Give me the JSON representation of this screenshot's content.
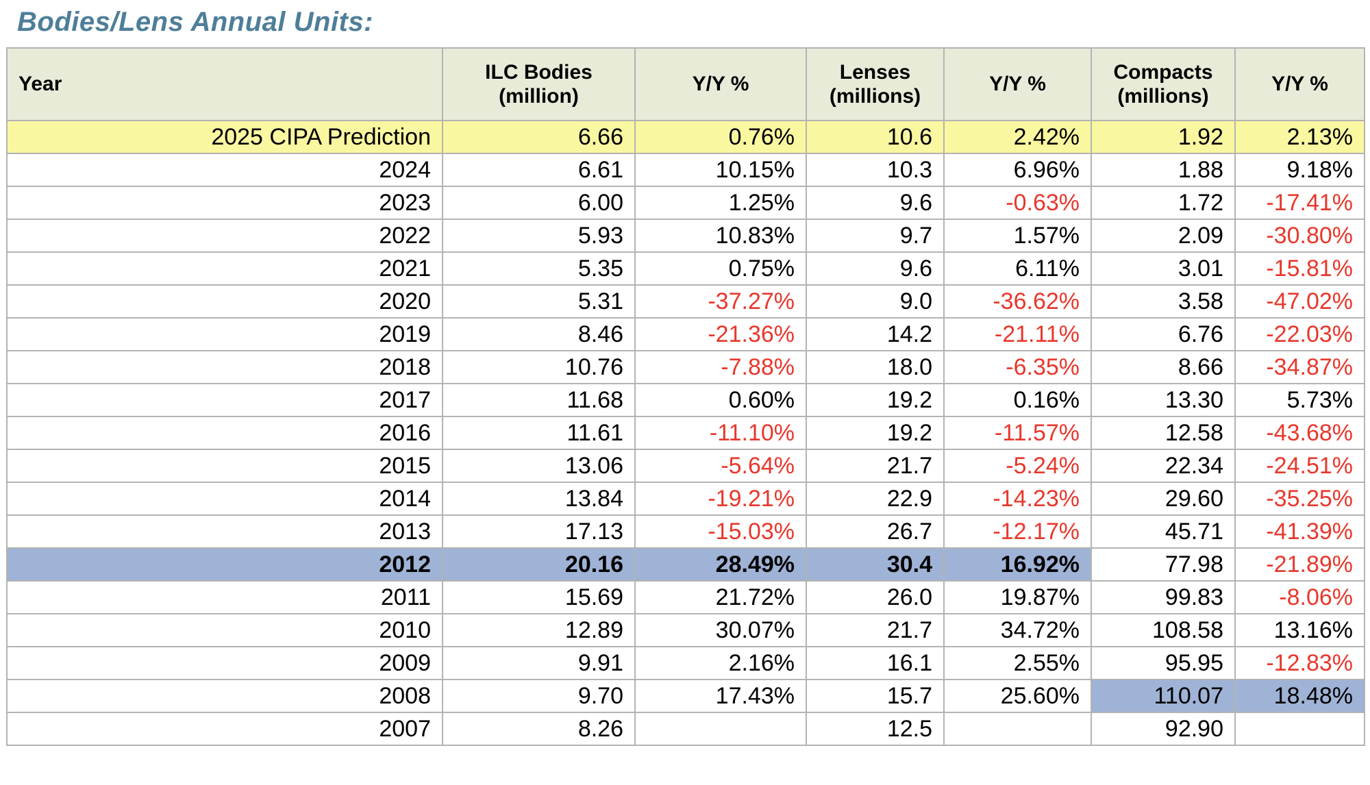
{
  "title": "Bodies/Lens Annual Units:",
  "colors": {
    "title_color": "#4e7e99",
    "header_bg": "#e9ebd9",
    "prediction_row_bg": "#faf7a1",
    "highlight_row_bg": "#9fb3d6",
    "negative_text": "#e8372b",
    "grid_line": "#b3b3b3"
  },
  "chart_data": {
    "type": "table",
    "title": "Bodies/Lens Annual Units:",
    "columns": [
      "Year",
      "ILC Bodies\n(million)",
      "Y/Y %",
      "Lenses\n(millions)",
      "Y/Y %",
      "Compacts\n(millions)",
      "Y/Y %"
    ],
    "rows": [
      {
        "year": "2025 CIPA Prediction",
        "cells": [
          "6.66",
          "0.76%",
          "10.6",
          "2.42%",
          "1.92",
          "2.13%"
        ],
        "highlight": "yellow"
      },
      {
        "year": "2024",
        "cells": [
          "6.61",
          "10.15%",
          "10.3",
          "6.96%",
          "1.88",
          "9.18%"
        ],
        "highlight": null
      },
      {
        "year": "2023",
        "cells": [
          "6.00",
          "1.25%",
          "9.6",
          "-0.63%",
          "1.72",
          "-17.41%"
        ],
        "highlight": null
      },
      {
        "year": "2022",
        "cells": [
          "5.93",
          "10.83%",
          "9.7",
          "1.57%",
          "2.09",
          "-30.80%"
        ],
        "highlight": null
      },
      {
        "year": "2021",
        "cells": [
          "5.35",
          "0.75%",
          "9.6",
          "6.11%",
          "3.01",
          "-15.81%"
        ],
        "highlight": null
      },
      {
        "year": "2020",
        "cells": [
          "5.31",
          "-37.27%",
          "9.0",
          "-36.62%",
          "3.58",
          "-47.02%"
        ],
        "highlight": null
      },
      {
        "year": "2019",
        "cells": [
          "8.46",
          "-21.36%",
          "14.2",
          "-21.11%",
          "6.76",
          "-22.03%"
        ],
        "highlight": null
      },
      {
        "year": "2018",
        "cells": [
          "10.76",
          "-7.88%",
          "18.0",
          "-6.35%",
          "8.66",
          "-34.87%"
        ],
        "highlight": null
      },
      {
        "year": "2017",
        "cells": [
          "11.68",
          "0.60%",
          "19.2",
          "0.16%",
          "13.30",
          "5.73%"
        ],
        "highlight": null
      },
      {
        "year": "2016",
        "cells": [
          "11.61",
          "-11.10%",
          "19.2",
          "-11.57%",
          "12.58",
          "-43.68%"
        ],
        "highlight": null
      },
      {
        "year": "2015",
        "cells": [
          "13.06",
          "-5.64%",
          "21.7",
          "-5.24%",
          "22.34",
          "-24.51%"
        ],
        "highlight": null
      },
      {
        "year": "2014",
        "cells": [
          "13.84",
          "-19.21%",
          "22.9",
          "-14.23%",
          "29.60",
          "-35.25%"
        ],
        "highlight": null
      },
      {
        "year": "2013",
        "cells": [
          "17.13",
          "-15.03%",
          "26.7",
          "-12.17%",
          "45.71",
          "-41.39%"
        ],
        "highlight": null
      },
      {
        "year": "2012",
        "cells": [
          "20.16",
          "28.49%",
          "30.4",
          "16.92%",
          "77.98",
          "-21.89%"
        ],
        "highlight": "blue-left"
      },
      {
        "year": "2011",
        "cells": [
          "15.69",
          "21.72%",
          "26.0",
          "19.87%",
          "99.83",
          "-8.06%"
        ],
        "highlight": null
      },
      {
        "year": "2010",
        "cells": [
          "12.89",
          "30.07%",
          "21.7",
          "34.72%",
          "108.58",
          "13.16%"
        ],
        "highlight": null
      },
      {
        "year": "2009",
        "cells": [
          "9.91",
          "2.16%",
          "16.1",
          "2.55%",
          "95.95",
          "-12.83%"
        ],
        "highlight": null
      },
      {
        "year": "2008",
        "cells": [
          "9.70",
          "17.43%",
          "15.7",
          "25.60%",
          "110.07",
          "18.48%"
        ],
        "highlight": "blue-right"
      },
      {
        "year": "2007",
        "cells": [
          "8.26",
          "",
          "12.5",
          "",
          "92.90",
          ""
        ],
        "highlight": null
      }
    ],
    "layout_hints": {
      "yellow_row_span": "all columns",
      "blue_left_span": "Year through second Y/Y % column, bold text",
      "blue_right_span": "Compacts and last Y/Y % columns",
      "negative_values_color": "red",
      "grid": true
    }
  }
}
